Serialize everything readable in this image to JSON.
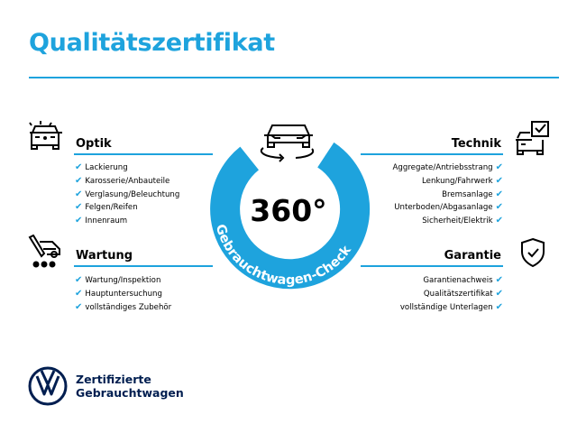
{
  "title": "Qualitätszertifikat",
  "colors": {
    "accent": "#1ea3dd",
    "brand": "#001e50"
  },
  "badge": {
    "value": "360°",
    "ring_text": "Gebrauchtwagen-Check",
    "icon": "car-rotate-icon"
  },
  "sections": {
    "optik": {
      "title": "Optik",
      "icon": "car-lights-icon",
      "items": [
        "Lackierung",
        "Karosserie/Anbauteile",
        "Verglasung/Beleuchtung",
        "Felgen/Reifen",
        "Innenraum"
      ]
    },
    "wartung": {
      "title": "Wartung",
      "icon": "service-car-icon",
      "items": [
        "Wartung/Inspektion",
        "Hauptuntersuchung",
        "vollständiges Zubehör"
      ]
    },
    "technik": {
      "title": "Technik",
      "icon": "car-checklist-icon",
      "items": [
        "Aggregate/Antriebsstrang",
        "Lenkung/Fahrwerk",
        "Bremsanlage",
        "Unterboden/Abgasanlage",
        "Sicherheit/Elektrik"
      ]
    },
    "garantie": {
      "title": "Garantie",
      "icon": "shield-check-icon",
      "items": [
        "Garantienachweis",
        "Qualitätszertifikat",
        "vollständige Unterlagen"
      ]
    }
  },
  "check_mark": "✔",
  "brand": {
    "line1": "Zertifizierte",
    "line2": "Gebrauchtwagen"
  }
}
